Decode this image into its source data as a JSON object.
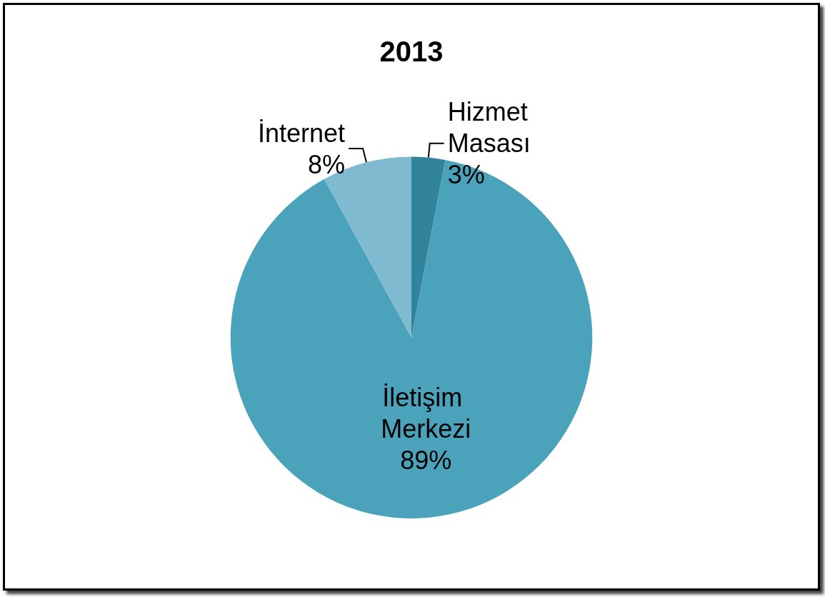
{
  "chart_data": {
    "type": "pie",
    "title": "2013",
    "categories": [
      "Hizmet Masası",
      "İletişim Merkezi",
      "İnternet"
    ],
    "values": [
      3,
      89,
      8
    ],
    "colors": [
      "#31849b",
      "#4aa3bb",
      "#7fbad0"
    ],
    "value_labels": [
      "3%",
      "89%",
      "8%"
    ],
    "legend": false
  }
}
